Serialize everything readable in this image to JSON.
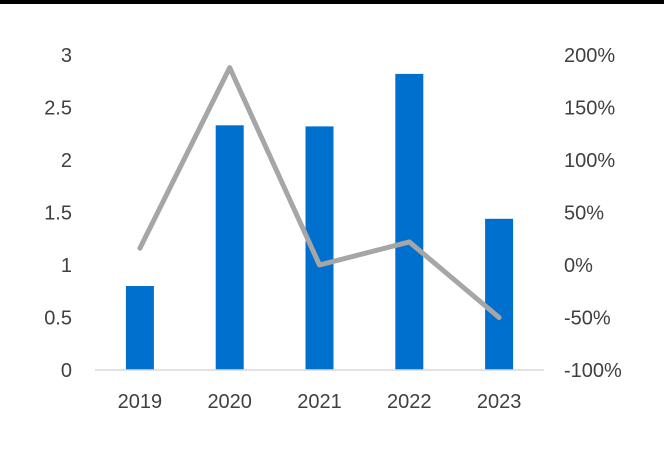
{
  "chart_data": {
    "type": "bar",
    "title": "",
    "xlabel": "",
    "ylabel": "",
    "categories": [
      "2019",
      "2020",
      "2021",
      "2022",
      "2023"
    ],
    "series": [
      {
        "kind": "bar",
        "axis": "left",
        "values": [
          0.8,
          2.33,
          2.32,
          2.82,
          1.44
        ],
        "color": "#0070CE"
      },
      {
        "kind": "line",
        "axis": "right",
        "values": [
          16,
          188,
          0,
          22,
          -50
        ],
        "color": "#A6A6A6"
      }
    ],
    "ylim_left": [
      0,
      3
    ],
    "left_ticks": [
      "0",
      "0.5",
      "1",
      "1.5",
      "2",
      "2.5",
      "3"
    ],
    "ylim_right": [
      -100,
      200
    ],
    "right_ticks": [
      "-100%",
      "-50%",
      "0%",
      "50%",
      "100%",
      "150%",
      "200%"
    ],
    "grid": false,
    "legend": "none"
  }
}
